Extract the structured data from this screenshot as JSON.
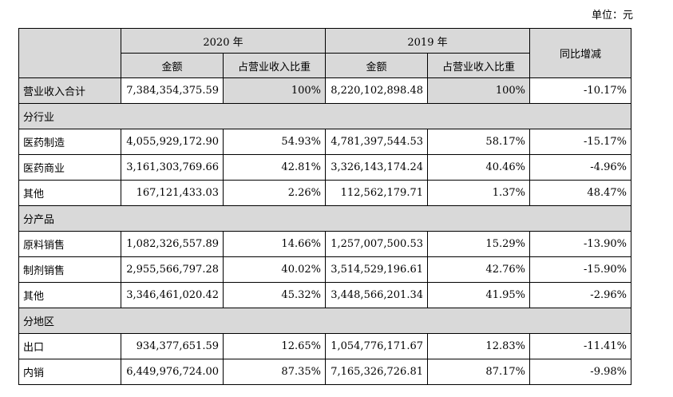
{
  "unit_label": "单位：元",
  "header": {
    "year_2020": "2020 年",
    "year_2019": "2019 年",
    "amount": "金额",
    "ratio": "占营业收入比重",
    "yoy": "同比增减"
  },
  "total": {
    "label": "营业收入合计",
    "amount_2020": "7,384,354,375.59",
    "ratio_2020": "100%",
    "amount_2019": "8,220,102,898.48",
    "ratio_2019": "100%",
    "yoy": "-10.17%"
  },
  "sections": [
    {
      "title": "分行业",
      "rows": [
        {
          "label": "医药制造",
          "amount_2020": "4,055,929,172.90",
          "ratio_2020": "54.93%",
          "amount_2019": "4,781,397,544.53",
          "ratio_2019": "58.17%",
          "yoy": "-15.17%"
        },
        {
          "label": "医药商业",
          "amount_2020": "3,161,303,769.66",
          "ratio_2020": "42.81%",
          "amount_2019": "3,326,143,174.24",
          "ratio_2019": "40.46%",
          "yoy": "-4.96%"
        },
        {
          "label": "其他",
          "amount_2020": "167,121,433.03",
          "ratio_2020": "2.26%",
          "amount_2019": "112,562,179.71",
          "ratio_2019": "1.37%",
          "yoy": "48.47%"
        }
      ]
    },
    {
      "title": "分产品",
      "rows": [
        {
          "label": "原料销售",
          "amount_2020": "1,082,326,557.89",
          "ratio_2020": "14.66%",
          "amount_2019": "1,257,007,500.53",
          "ratio_2019": "15.29%",
          "yoy": "-13.90%"
        },
        {
          "label": "制剂销售",
          "amount_2020": "2,955,566,797.28",
          "ratio_2020": "40.02%",
          "amount_2019": "3,514,529,196.61",
          "ratio_2019": "42.76%",
          "yoy": "-15.90%"
        },
        {
          "label": "其他",
          "amount_2020": "3,346,461,020.42",
          "ratio_2020": "45.32%",
          "amount_2019": "3,448,566,201.34",
          "ratio_2019": "41.95%",
          "yoy": "-2.96%"
        }
      ]
    },
    {
      "title": "分地区",
      "rows": [
        {
          "label": "出口",
          "amount_2020": "934,377,651.59",
          "ratio_2020": "12.65%",
          "amount_2019": "1,054,776,171.67",
          "ratio_2019": "12.83%",
          "yoy": "-11.41%"
        },
        {
          "label": "内销",
          "amount_2020": "6,449,976,724.00",
          "ratio_2020": "87.35%",
          "amount_2019": "7,165,326,726.81",
          "ratio_2019": "87.17%",
          "yoy": "-9.98%"
        }
      ]
    }
  ]
}
